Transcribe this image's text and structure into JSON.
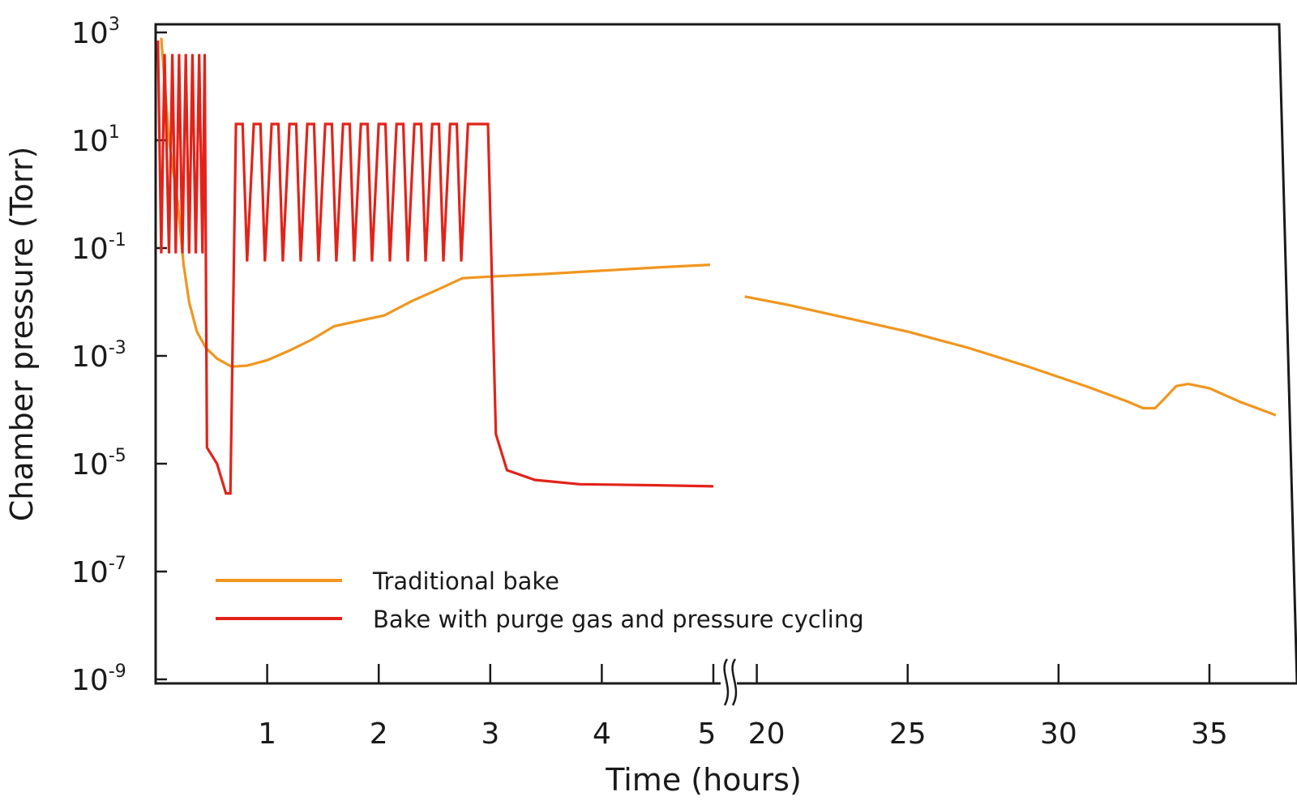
{
  "chart_data": {
    "type": "line",
    "title": "",
    "xlabel": "Time (hours)",
    "ylabel": "Chamber pressure (Torr)",
    "yscale": "log",
    "ylim_exponent": [
      -9,
      3
    ],
    "y_ticks": [
      {
        "base": "10",
        "exp": "3"
      },
      {
        "base": "10",
        "exp": "1"
      },
      {
        "base": "10",
        "exp": "-1"
      },
      {
        "base": "10",
        "exp": "-3"
      },
      {
        "base": "10",
        "exp": "-5"
      },
      {
        "base": "10",
        "exp": "-7"
      },
      {
        "base": "10",
        "exp": "-9"
      }
    ],
    "x_segments": [
      {
        "range": [
          0,
          5
        ],
        "ticks": [
          "1",
          "2",
          "3",
          "4",
          "5"
        ]
      },
      {
        "range": [
          19.5,
          37.5
        ],
        "ticks": [
          "20",
          "25",
          "30",
          "35"
        ]
      }
    ],
    "axis_break": "between 5 and 20",
    "legend_position": "lower-left",
    "colors": {
      "traditional": "#f0961e",
      "purge": "#e2231a",
      "axis": "#1a1a1a"
    },
    "series": [
      {
        "name": "Traditional bake",
        "color": "#f0961e",
        "points": [
          [
            0.05,
            2.9
          ],
          [
            0.12,
            1.0
          ],
          [
            0.2,
            -0.2
          ],
          [
            0.25,
            -1.3
          ],
          [
            0.3,
            -2.0
          ],
          [
            0.37,
            -2.55
          ],
          [
            0.45,
            -2.85
          ],
          [
            0.55,
            -3.05
          ],
          [
            0.68,
            -3.2
          ],
          [
            0.82,
            -3.18
          ],
          [
            1.0,
            -3.08
          ],
          [
            1.2,
            -2.9
          ],
          [
            1.4,
            -2.7
          ],
          [
            1.6,
            -2.45
          ],
          [
            1.8,
            -2.36
          ],
          [
            2.05,
            -2.25
          ],
          [
            2.3,
            -1.98
          ],
          [
            2.55,
            -1.75
          ],
          [
            2.75,
            -1.56
          ],
          [
            3.0,
            -1.53
          ],
          [
            3.5,
            -1.48
          ],
          [
            4.0,
            -1.42
          ],
          [
            4.5,
            -1.36
          ],
          [
            4.97,
            -1.31
          ]
        ]
      },
      {
        "name": "Traditional bake",
        "color": "#f0961e",
        "points": [
          [
            19.6,
            -1.9
          ],
          [
            21,
            -2.05
          ],
          [
            23,
            -2.3
          ],
          [
            25,
            -2.55
          ],
          [
            27,
            -2.85
          ],
          [
            29,
            -3.2
          ],
          [
            31,
            -3.58
          ],
          [
            32.3,
            -3.85
          ],
          [
            32.8,
            -3.97
          ],
          [
            33.2,
            -3.97
          ],
          [
            33.5,
            -3.8
          ],
          [
            33.9,
            -3.56
          ],
          [
            34.3,
            -3.52
          ],
          [
            35,
            -3.6
          ],
          [
            36,
            -3.85
          ],
          [
            37.2,
            -4.1
          ]
        ]
      },
      {
        "name": "Bake with purge gas and pressure cycling",
        "color": "#e2231a",
        "points": [
          [
            0.02,
            2.85
          ],
          [
            0.05,
            -1.1
          ],
          [
            0.08,
            2.6
          ],
          [
            0.12,
            -1.1
          ],
          [
            0.15,
            2.6
          ],
          [
            0.18,
            -1.1
          ],
          [
            0.21,
            2.6
          ],
          [
            0.24,
            -1.1
          ],
          [
            0.27,
            2.6
          ],
          [
            0.3,
            -1.1
          ],
          [
            0.33,
            2.6
          ],
          [
            0.36,
            -1.1
          ],
          [
            0.39,
            2.6
          ],
          [
            0.42,
            -1.1
          ],
          [
            0.44,
            2.6
          ],
          [
            0.46,
            -4.7
          ],
          [
            0.55,
            -5.0
          ],
          [
            0.63,
            -5.55
          ],
          [
            0.67,
            -5.55
          ],
          [
            0.72,
            1.3
          ],
          [
            0.78,
            1.3
          ],
          [
            0.82,
            -1.25
          ],
          [
            0.88,
            1.3
          ],
          [
            0.94,
            1.3
          ],
          [
            0.98,
            -1.25
          ],
          [
            1.04,
            1.3
          ],
          [
            1.1,
            1.3
          ],
          [
            1.14,
            -1.25
          ],
          [
            1.2,
            1.3
          ],
          [
            1.26,
            1.3
          ],
          [
            1.3,
            -1.25
          ],
          [
            1.36,
            1.3
          ],
          [
            1.42,
            1.3
          ],
          [
            1.46,
            -1.25
          ],
          [
            1.52,
            1.3
          ],
          [
            1.58,
            1.3
          ],
          [
            1.62,
            -1.25
          ],
          [
            1.68,
            1.3
          ],
          [
            1.74,
            1.3
          ],
          [
            1.78,
            -1.25
          ],
          [
            1.84,
            1.3
          ],
          [
            1.9,
            1.3
          ],
          [
            1.94,
            -1.25
          ],
          [
            2.0,
            1.3
          ],
          [
            2.06,
            1.3
          ],
          [
            2.1,
            -1.25
          ],
          [
            2.16,
            1.3
          ],
          [
            2.22,
            1.3
          ],
          [
            2.26,
            -1.25
          ],
          [
            2.32,
            1.3
          ],
          [
            2.38,
            1.3
          ],
          [
            2.42,
            -1.25
          ],
          [
            2.48,
            1.3
          ],
          [
            2.54,
            1.3
          ],
          [
            2.58,
            -1.25
          ],
          [
            2.64,
            1.3
          ],
          [
            2.7,
            1.3
          ],
          [
            2.74,
            -1.25
          ],
          [
            2.8,
            1.3
          ],
          [
            2.98,
            1.3
          ],
          [
            3.05,
            -4.45
          ],
          [
            3.15,
            -5.12
          ],
          [
            3.4,
            -5.3
          ],
          [
            3.8,
            -5.38
          ],
          [
            4.5,
            -5.4
          ],
          [
            5.0,
            -5.42
          ]
        ]
      }
    ]
  }
}
